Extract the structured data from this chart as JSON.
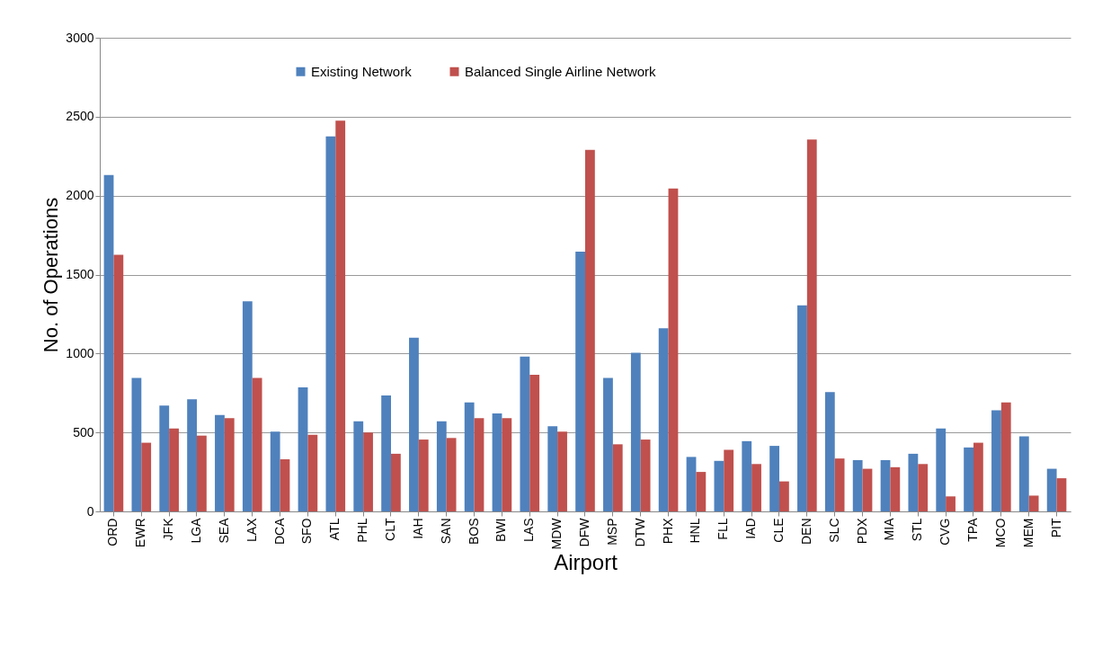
{
  "chart_data": {
    "type": "bar",
    "xlabel": "Airport",
    "ylabel": "No. of Operations",
    "categories": [
      "ORD",
      "EWR",
      "JFK",
      "LGA",
      "SEA",
      "LAX",
      "DCA",
      "SFO",
      "ATL",
      "PHL",
      "CLT",
      "IAH",
      "SAN",
      "BOS",
      "BWI",
      "LAS",
      "MDW",
      "DFW",
      "MSP",
      "DTW",
      "PHX",
      "HNL",
      "FLL",
      "IAD",
      "CLE",
      "DEN",
      "SLC",
      "PDX",
      "MIA",
      "STL",
      "CVG",
      "TPA",
      "MCO",
      "MEM",
      "PIT"
    ],
    "series": [
      {
        "name": "Existing Network",
        "color": "#4f81bd",
        "values": [
          2130,
          845,
          670,
          710,
          610,
          1330,
          505,
          785,
          2375,
          570,
          735,
          1100,
          570,
          690,
          620,
          980,
          540,
          1645,
          845,
          1005,
          1160,
          345,
          320,
          445,
          415,
          1305,
          755,
          325,
          325,
          365,
          525,
          405,
          640,
          475,
          270
        ]
      },
      {
        "name": "Balanced Single  Airline Network",
        "color": "#c0504d",
        "values": [
          1625,
          435,
          525,
          480,
          590,
          845,
          330,
          485,
          2475,
          500,
          365,
          455,
          465,
          590,
          590,
          865,
          505,
          2290,
          425,
          455,
          2045,
          250,
          390,
          300,
          190,
          2355,
          335,
          270,
          280,
          300,
          95,
          435,
          690,
          100,
          210
        ]
      }
    ],
    "ylim": [
      0,
      3000
    ],
    "yticks": [
      0,
      500,
      1000,
      1500,
      2000,
      2500,
      3000
    ],
    "grid": "y",
    "legend": "top"
  }
}
